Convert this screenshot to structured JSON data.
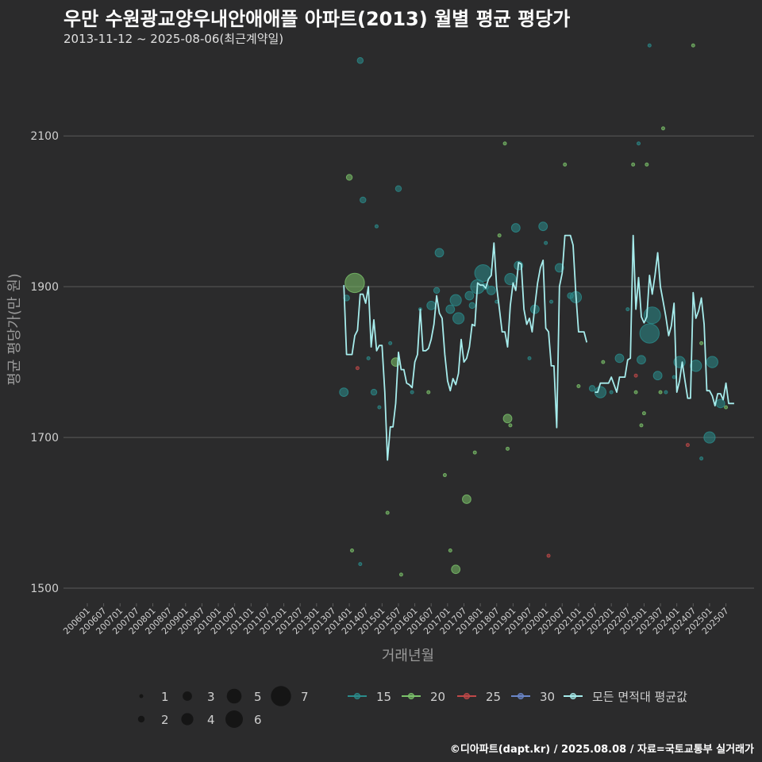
{
  "title": "우만 수원광교양우내안애애플 아파트(2013) 월별 평균 평당가",
  "subtitle": "2013-11-12 ~ 2025-08-06(최근계약일)",
  "footer": "©디아파트(dapt.kr) / 2025.08.08 / 자료=국토교통부 실거래가",
  "colors": {
    "background": "#2b2b2c",
    "grid": "#5a5a5a",
    "axis_text": "#cfcfcf",
    "area_15": "#2a8c8c",
    "area_20": "#7bc26a",
    "area_25": "#c04848",
    "area_30": "#6a86c8",
    "avg_line": "#a6ecec"
  },
  "chart_data": {
    "type": "scatter",
    "xlabel": "거래년월",
    "ylabel": "평균 평당가(만 원)",
    "xlim": [
      "2006-01",
      "2025-08"
    ],
    "ylim": [
      1480,
      2215
    ],
    "y_ticks": [
      1500,
      1700,
      1900,
      2100
    ],
    "grid": true,
    "x_ticks": [
      "200601",
      "200607",
      "200701",
      "200707",
      "200801",
      "200807",
      "200901",
      "200907",
      "201001",
      "201007",
      "201101",
      "201107",
      "201201",
      "201207",
      "201301",
      "201307",
      "201401",
      "201407",
      "201501",
      "201507",
      "201601",
      "201607",
      "201701",
      "201707",
      "201801",
      "201807",
      "201901",
      "201907",
      "202001",
      "202007",
      "202101",
      "202107",
      "202201",
      "202207",
      "202301",
      "202307",
      "202401",
      "202407",
      "202501",
      "202507"
    ],
    "size_legend": {
      "values": [
        1,
        2,
        3,
        4,
        5,
        6,
        7
      ]
    },
    "color_legend": [
      {
        "name": "15",
        "color": "#2a8c8c"
      },
      {
        "name": "20",
        "color": "#7bc26a"
      },
      {
        "name": "25",
        "color": "#c04848"
      },
      {
        "name": "30",
        "color": "#6a86c8"
      },
      {
        "name": "모든 면적대 평균값",
        "color": "#a6ecec"
      }
    ],
    "points": [
      {
        "x": "2013-11",
        "y": 1760,
        "size": 3,
        "area": "15"
      },
      {
        "x": "2013-12",
        "y": 1885,
        "size": 2,
        "area": "15"
      },
      {
        "x": "2014-01",
        "y": 2045,
        "size": 2,
        "area": "20"
      },
      {
        "x": "2014-02",
        "y": 1550,
        "size": 1,
        "area": "20"
      },
      {
        "x": "2014-03",
        "y": 1905,
        "size": 7,
        "area": "20"
      },
      {
        "x": "2014-04",
        "y": 1792,
        "size": 1,
        "area": "25"
      },
      {
        "x": "2014-05",
        "y": 1532,
        "size": 1,
        "area": "15"
      },
      {
        "x": "2014-05",
        "y": 2200,
        "size": 2,
        "area": "15"
      },
      {
        "x": "2014-06",
        "y": 2015,
        "size": 2,
        "area": "15"
      },
      {
        "x": "2014-08",
        "y": 1805,
        "size": 1,
        "area": "15"
      },
      {
        "x": "2014-10",
        "y": 1760,
        "size": 2,
        "area": "15"
      },
      {
        "x": "2014-11",
        "y": 1980,
        "size": 1,
        "area": "15"
      },
      {
        "x": "2014-12",
        "y": 1740,
        "size": 1,
        "area": "15"
      },
      {
        "x": "2015-03",
        "y": 1600,
        "size": 1,
        "area": "20"
      },
      {
        "x": "2015-04",
        "y": 1825,
        "size": 1,
        "area": "15"
      },
      {
        "x": "2015-07",
        "y": 2030,
        "size": 2,
        "area": "15"
      },
      {
        "x": "2015-06",
        "y": 1800,
        "size": 3,
        "area": "20"
      },
      {
        "x": "2015-08",
        "y": 1518,
        "size": 1,
        "area": "20"
      },
      {
        "x": "2015-12",
        "y": 1760,
        "size": 1,
        "area": "15"
      },
      {
        "x": "2016-03",
        "y": 1870,
        "size": 1,
        "area": "15"
      },
      {
        "x": "2016-06",
        "y": 1760,
        "size": 1,
        "area": "20"
      },
      {
        "x": "2016-07",
        "y": 1875,
        "size": 3,
        "area": "15"
      },
      {
        "x": "2016-09",
        "y": 1895,
        "size": 2,
        "area": "15"
      },
      {
        "x": "2016-10",
        "y": 1945,
        "size": 3,
        "area": "15"
      },
      {
        "x": "2016-12",
        "y": 1650,
        "size": 1,
        "area": "20"
      },
      {
        "x": "2017-02",
        "y": 1870,
        "size": 3,
        "area": "15"
      },
      {
        "x": "2017-02",
        "y": 1550,
        "size": 1,
        "area": "20"
      },
      {
        "x": "2017-04",
        "y": 1525,
        "size": 3,
        "area": "20"
      },
      {
        "x": "2017-04",
        "y": 1882,
        "size": 4,
        "area": "15"
      },
      {
        "x": "2017-05",
        "y": 1858,
        "size": 4,
        "area": "15"
      },
      {
        "x": "2017-08",
        "y": 1618,
        "size": 3,
        "area": "20"
      },
      {
        "x": "2017-09",
        "y": 1888,
        "size": 3,
        "area": "15"
      },
      {
        "x": "2017-10",
        "y": 1875,
        "size": 2,
        "area": "15"
      },
      {
        "x": "2017-11",
        "y": 1680,
        "size": 1,
        "area": "20"
      },
      {
        "x": "2017-12",
        "y": 1900,
        "size": 5,
        "area": "15"
      },
      {
        "x": "2018-02",
        "y": 1918,
        "size": 6,
        "area": "15"
      },
      {
        "x": "2018-03",
        "y": 1900,
        "size": 2,
        "area": "15"
      },
      {
        "x": "2018-05",
        "y": 1895,
        "size": 3,
        "area": "15"
      },
      {
        "x": "2018-07",
        "y": 1880,
        "size": 1,
        "area": "15"
      },
      {
        "x": "2018-08",
        "y": 1968,
        "size": 1,
        "area": "20"
      },
      {
        "x": "2018-10",
        "y": 2090,
        "size": 1,
        "area": "20"
      },
      {
        "x": "2018-11",
        "y": 1685,
        "size": 1,
        "area": "20"
      },
      {
        "x": "2018-11",
        "y": 1725,
        "size": 3,
        "area": "20"
      },
      {
        "x": "2018-12",
        "y": 1716,
        "size": 1,
        "area": "20"
      },
      {
        "x": "2018-12",
        "y": 1910,
        "size": 4,
        "area": "15"
      },
      {
        "x": "2019-02",
        "y": 1978,
        "size": 3,
        "area": "15"
      },
      {
        "x": "2019-03",
        "y": 1928,
        "size": 3,
        "area": "15"
      },
      {
        "x": "2019-07",
        "y": 1805,
        "size": 1,
        "area": "15"
      },
      {
        "x": "2019-09",
        "y": 1870,
        "size": 3,
        "area": "15"
      },
      {
        "x": "2019-12",
        "y": 1980,
        "size": 3,
        "area": "15"
      },
      {
        "x": "2020-01",
        "y": 1958,
        "size": 1,
        "area": "15"
      },
      {
        "x": "2020-02",
        "y": 1543,
        "size": 1,
        "area": "25"
      },
      {
        "x": "2020-03",
        "y": 1880,
        "size": 1,
        "area": "15"
      },
      {
        "x": "2020-06",
        "y": 1925,
        "size": 3,
        "area": "15"
      },
      {
        "x": "2020-08",
        "y": 2062,
        "size": 1,
        "area": "20"
      },
      {
        "x": "2020-10",
        "y": 1888,
        "size": 2,
        "area": "15"
      },
      {
        "x": "2020-12",
        "y": 1886,
        "size": 4,
        "area": "15"
      },
      {
        "x": "2021-01",
        "y": 1768,
        "size": 1,
        "area": "20"
      },
      {
        "x": "2021-06",
        "y": 1765,
        "size": 2,
        "area": "15"
      },
      {
        "x": "2021-09",
        "y": 1760,
        "size": 4,
        "area": "15"
      },
      {
        "x": "2021-10",
        "y": 1800,
        "size": 1,
        "area": "20"
      },
      {
        "x": "2022-01",
        "y": 1760,
        "size": 1,
        "area": "15"
      },
      {
        "x": "2022-04",
        "y": 1805,
        "size": 3,
        "area": "15"
      },
      {
        "x": "2022-07",
        "y": 1870,
        "size": 1,
        "area": "15"
      },
      {
        "x": "2022-09",
        "y": 2062,
        "size": 1,
        "area": "20"
      },
      {
        "x": "2022-10",
        "y": 1760,
        "size": 1,
        "area": "20"
      },
      {
        "x": "2022-10",
        "y": 1782,
        "size": 1,
        "area": "25"
      },
      {
        "x": "2022-11",
        "y": 2090,
        "size": 1,
        "area": "15"
      },
      {
        "x": "2022-12",
        "y": 1803,
        "size": 3,
        "area": "15"
      },
      {
        "x": "2022-12",
        "y": 1716,
        "size": 1,
        "area": "20"
      },
      {
        "x": "2023-01",
        "y": 1732,
        "size": 1,
        "area": "20"
      },
      {
        "x": "2023-02",
        "y": 2062,
        "size": 1,
        "area": "20"
      },
      {
        "x": "2023-03",
        "y": 1838,
        "size": 7,
        "area": "15"
      },
      {
        "x": "2023-03",
        "y": 2220,
        "size": 1,
        "area": "15"
      },
      {
        "x": "2023-04",
        "y": 1862,
        "size": 6,
        "area": "15"
      },
      {
        "x": "2023-06",
        "y": 1782,
        "size": 3,
        "area": "15"
      },
      {
        "x": "2023-07",
        "y": 1760,
        "size": 1,
        "area": "20"
      },
      {
        "x": "2023-08",
        "y": 2110,
        "size": 1,
        "area": "20"
      },
      {
        "x": "2023-09",
        "y": 1760,
        "size": 1,
        "area": "15"
      },
      {
        "x": "2023-12",
        "y": 1780,
        "size": 1,
        "area": "15"
      },
      {
        "x": "2024-02",
        "y": 1800,
        "size": 4,
        "area": "15"
      },
      {
        "x": "2024-05",
        "y": 1690,
        "size": 1,
        "area": "25"
      },
      {
        "x": "2024-07",
        "y": 2220,
        "size": 1,
        "area": "20"
      },
      {
        "x": "2024-08",
        "y": 1795,
        "size": 4,
        "area": "15"
      },
      {
        "x": "2024-10",
        "y": 1672,
        "size": 1,
        "area": "15"
      },
      {
        "x": "2024-10",
        "y": 1825,
        "size": 1,
        "area": "20"
      },
      {
        "x": "2025-01",
        "y": 1700,
        "size": 4,
        "area": "15"
      },
      {
        "x": "2025-02",
        "y": 1800,
        "size": 4,
        "area": "15"
      },
      {
        "x": "2025-05",
        "y": 1745,
        "size": 3,
        "area": "15"
      },
      {
        "x": "2025-07",
        "y": 1740,
        "size": 1,
        "area": "20"
      }
    ],
    "avg_segments": [
      [
        [
          "2013-11",
          1902
        ],
        [
          "2013-12",
          1810
        ],
        [
          "2014-01",
          1810
        ],
        [
          "2014-02",
          1810
        ],
        [
          "2014-03",
          1835
        ],
        [
          "2014-04",
          1842
        ],
        [
          "2014-05",
          1890
        ],
        [
          "2014-06",
          1890
        ],
        [
          "2014-07",
          1878
        ],
        [
          "2014-08",
          1900
        ],
        [
          "2014-09",
          1820
        ],
        [
          "2014-10",
          1856
        ],
        [
          "2014-11",
          1815
        ],
        [
          "2014-12",
          1822
        ],
        [
          "2015-01",
          1822
        ],
        [
          "2015-02",
          1760
        ],
        [
          "2015-03",
          1670
        ],
        [
          "2015-04",
          1714
        ],
        [
          "2015-05",
          1714
        ],
        [
          "2015-06",
          1745
        ],
        [
          "2015-07",
          1813
        ],
        [
          "2015-08",
          1790
        ],
        [
          "2015-09",
          1790
        ],
        [
          "2015-10",
          1772
        ],
        [
          "2015-11",
          1770
        ],
        [
          "2015-12",
          1766
        ],
        [
          "2016-01",
          1800
        ],
        [
          "2016-02",
          1810
        ],
        [
          "2016-03",
          1870
        ],
        [
          "2016-04",
          1815
        ],
        [
          "2016-05",
          1815
        ],
        [
          "2016-06",
          1818
        ],
        [
          "2016-07",
          1830
        ],
        [
          "2016-08",
          1850
        ],
        [
          "2016-09",
          1888
        ],
        [
          "2016-10",
          1865
        ],
        [
          "2016-11",
          1858
        ],
        [
          "2016-12",
          1810
        ],
        [
          "2017-01",
          1775
        ],
        [
          "2017-02",
          1762
        ],
        [
          "2017-03",
          1778
        ],
        [
          "2017-04",
          1770
        ],
        [
          "2017-05",
          1785
        ],
        [
          "2017-06",
          1830
        ],
        [
          "2017-07",
          1800
        ],
        [
          "2017-08",
          1805
        ],
        [
          "2017-09",
          1820
        ],
        [
          "2017-10",
          1850
        ],
        [
          "2017-11",
          1848
        ],
        [
          "2017-12",
          1905
        ],
        [
          "2018-01",
          1902
        ],
        [
          "2018-02",
          1902
        ],
        [
          "2018-03",
          1898
        ],
        [
          "2018-04",
          1910
        ],
        [
          "2018-05",
          1915
        ],
        [
          "2018-06",
          1958
        ],
        [
          "2018-07",
          1900
        ],
        [
          "2018-08",
          1870
        ],
        [
          "2018-09",
          1840
        ],
        [
          "2018-10",
          1840
        ],
        [
          "2018-11",
          1820
        ],
        [
          "2018-12",
          1875
        ],
        [
          "2019-01",
          1905
        ],
        [
          "2019-02",
          1895
        ],
        [
          "2019-03",
          1932
        ],
        [
          "2019-04",
          1930
        ],
        [
          "2019-05",
          1870
        ],
        [
          "2019-06",
          1850
        ],
        [
          "2019-07",
          1858
        ],
        [
          "2019-08",
          1840
        ],
        [
          "2019-09",
          1875
        ],
        [
          "2019-10",
          1905
        ],
        [
          "2019-11",
          1925
        ],
        [
          "2019-12",
          1935
        ],
        [
          "2020-01",
          1845
        ],
        [
          "2020-02",
          1840
        ],
        [
          "2020-03",
          1795
        ],
        [
          "2020-04",
          1795
        ],
        [
          "2020-05",
          1713
        ],
        [
          "2020-06",
          1900
        ],
        [
          "2020-07",
          1918
        ],
        [
          "2020-08",
          1968
        ],
        [
          "2020-09",
          1968
        ],
        [
          "2020-10",
          1968
        ],
        [
          "2020-11",
          1955
        ],
        [
          "2020-12",
          1890
        ],
        [
          "2021-01",
          1840
        ],
        [
          "2021-02",
          1840
        ],
        [
          "2021-03",
          1840
        ],
        [
          "2021-04",
          1826
        ]
      ],
      [
        [
          "2021-07",
          1760
        ],
        [
          "2021-08",
          1760
        ],
        [
          "2021-09",
          1772
        ],
        [
          "2021-10",
          1772
        ],
        [
          "2021-11",
          1772
        ],
        [
          "2021-12",
          1772
        ],
        [
          "2022-01",
          1780
        ],
        [
          "2022-02",
          1770
        ],
        [
          "2022-03",
          1760
        ],
        [
          "2022-04",
          1780
        ],
        [
          "2022-05",
          1780
        ],
        [
          "2022-06",
          1780
        ],
        [
          "2022-07",
          1803
        ],
        [
          "2022-08",
          1805
        ],
        [
          "2022-09",
          1968
        ],
        [
          "2022-10",
          1870
        ],
        [
          "2022-11",
          1912
        ],
        [
          "2022-12",
          1860
        ],
        [
          "2023-01",
          1852
        ],
        [
          "2023-02",
          1860
        ],
        [
          "2023-03",
          1915
        ],
        [
          "2023-04",
          1890
        ],
        [
          "2023-05",
          1915
        ],
        [
          "2023-06",
          1945
        ],
        [
          "2023-07",
          1900
        ],
        [
          "2023-08",
          1880
        ],
        [
          "2023-09",
          1860
        ],
        [
          "2023-10",
          1835
        ],
        [
          "2023-11",
          1848
        ],
        [
          "2023-12",
          1878
        ],
        [
          "2024-01",
          1760
        ],
        [
          "2024-02",
          1775
        ],
        [
          "2024-03",
          1800
        ],
        [
          "2024-04",
          1775
        ],
        [
          "2024-05",
          1752
        ],
        [
          "2024-06",
          1752
        ],
        [
          "2024-07",
          1892
        ],
        [
          "2024-08",
          1858
        ],
        [
          "2024-09",
          1868
        ],
        [
          "2024-10",
          1885
        ],
        [
          "2024-11",
          1850
        ],
        [
          "2024-12",
          1762
        ],
        [
          "2025-01",
          1762
        ],
        [
          "2025-02",
          1755
        ],
        [
          "2025-03",
          1742
        ],
        [
          "2025-04",
          1758
        ],
        [
          "2025-05",
          1758
        ],
        [
          "2025-06",
          1750
        ],
        [
          "2025-07",
          1772
        ],
        [
          "2025-08",
          1745
        ],
        [
          "2025-09",
          1745
        ],
        [
          "2025-10",
          1745
        ]
      ]
    ]
  }
}
